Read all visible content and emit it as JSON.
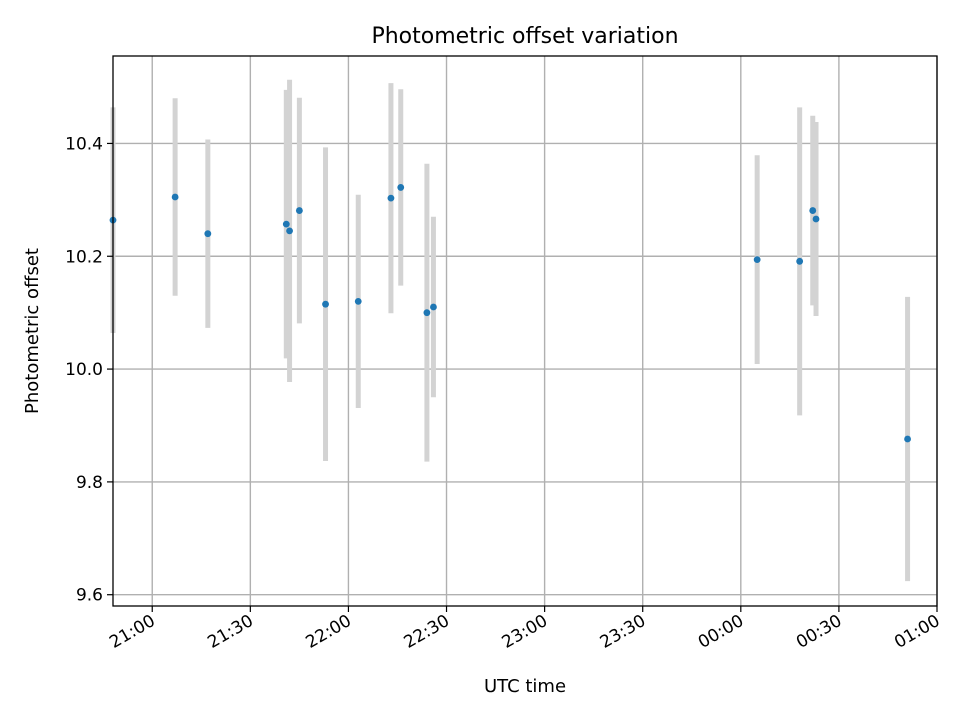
{
  "chart_data": {
    "type": "scatter",
    "title": "Photometric offset variation",
    "xlabel": "UTC time",
    "ylabel": "Photometric offset",
    "x_tick_labels": [
      "21:00",
      "21:30",
      "22:00",
      "22:30",
      "23:00",
      "23:30",
      "00:00",
      "00:30",
      "01:00"
    ],
    "y_tick_labels": [
      "9.6",
      "9.8",
      "10.0",
      "10.2",
      "10.4"
    ],
    "y_ticks": [
      9.6,
      9.8,
      10.0,
      10.2,
      10.4
    ],
    "xlim": [
      "20:48",
      "01:00"
    ],
    "ylim": [
      9.58,
      10.555
    ],
    "grid": true,
    "point_color": "#1f77b4",
    "errorbar_color": "#d3d3d3",
    "points": [
      {
        "time": "20:48",
        "y": 10.264,
        "err": 0.2
      },
      {
        "time": "21:07",
        "y": 10.305,
        "err": 0.175
      },
      {
        "time": "21:17",
        "y": 10.24,
        "err": 0.167
      },
      {
        "time": "21:41",
        "y": 10.257,
        "err": 0.238
      },
      {
        "time": "21:42",
        "y": 10.245,
        "err": 0.268
      },
      {
        "time": "21:45",
        "y": 10.281,
        "err": 0.2
      },
      {
        "time": "21:53",
        "y": 10.115,
        "err": 0.278
      },
      {
        "time": "22:03",
        "y": 10.12,
        "err": 0.189
      },
      {
        "time": "22:13",
        "y": 10.303,
        "err": 0.204
      },
      {
        "time": "22:16",
        "y": 10.322,
        "err": 0.174
      },
      {
        "time": "22:24",
        "y": 10.1,
        "err": 0.264
      },
      {
        "time": "22:26",
        "y": 10.11,
        "err": 0.16
      },
      {
        "time": "00:05",
        "y": 10.194,
        "err": 0.185
      },
      {
        "time": "00:18",
        "y": 10.191,
        "err": 0.273
      },
      {
        "time": "00:22",
        "y": 10.281,
        "err": 0.168
      },
      {
        "time": "00:23",
        "y": 10.266,
        "err": 0.172
      },
      {
        "time": "00:51",
        "y": 9.876,
        "err": 0.252
      }
    ]
  }
}
